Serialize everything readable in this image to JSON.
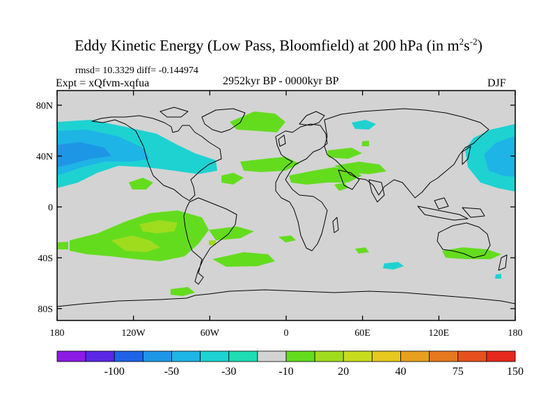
{
  "title": {
    "main": "Eddy Kinetic Energy (Low Pass, Bloomfield) at 200 hPa (in m",
    "sup1": "2",
    "mid": "s",
    "sup2": "-2",
    "end": ")"
  },
  "stats": "rmsd= 10.3329 diff= -0.144974",
  "experiment": "Expt = xQfvm-xqfua",
  "period": "2952kyr BP - 0000kyr BP",
  "season": "DJF",
  "map": {
    "lat_ticks": [
      "80N",
      "40N",
      "0",
      "40S",
      "80S"
    ],
    "lon_ticks": [
      "180",
      "120W",
      "60W",
      "0",
      "60E",
      "120E",
      "180"
    ],
    "land_fill": "#d3d3d3"
  },
  "colorbar": {
    "colors": [
      "#8c1be6",
      "#5a28e6",
      "#1f63e6",
      "#1e96e6",
      "#1eb4e6",
      "#1ed2d2",
      "#1edcb4",
      "#d3d3d3",
      "#64dc1e",
      "#a0dc1e",
      "#c8dc1e",
      "#e6c81e",
      "#e6a01e",
      "#e6781e",
      "#e6501e",
      "#e6281e"
    ],
    "labels": [
      "-100",
      "-50",
      "-30",
      "-10",
      "20",
      "40",
      "75",
      "150"
    ]
  }
}
